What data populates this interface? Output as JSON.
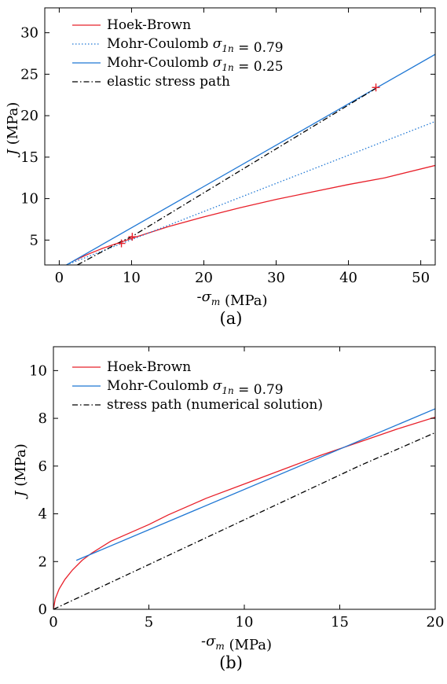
{
  "figure": {
    "panels": [
      {
        "caption": "(a)"
      },
      {
        "caption": "(b)"
      }
    ]
  },
  "colors": {
    "hoek_brown": "#e8202a",
    "mohr_coulomb": "#1f77d4",
    "path": "#000000",
    "axes": "#000000"
  },
  "chart_data": [
    {
      "type": "line",
      "xlabel": "-σm (MPa)",
      "ylabel": "J (MPa)",
      "xlim": [
        -2,
        52
      ],
      "ylim": [
        2,
        33
      ],
      "xticks": [
        0,
        10,
        20,
        30,
        40,
        50
      ],
      "yticks": [
        5,
        10,
        15,
        20,
        25,
        30
      ],
      "legend_position": "top-left",
      "series": [
        {
          "name": "Hoek-Brown",
          "style": "solid",
          "color": "#e8202a",
          "x": [
            2.0,
            4.0,
            6.0,
            8.5,
            10.0,
            12.5,
            15.0,
            20.0,
            25.0,
            30.0,
            35.0,
            40.0,
            45.0,
            52.0
          ],
          "y": [
            2.5,
            3.3,
            4.0,
            4.75,
            5.2,
            5.9,
            6.6,
            7.8,
            8.9,
            9.9,
            10.8,
            11.7,
            12.5,
            14.0
          ]
        },
        {
          "name": "Mohr-Coulomb σ1n = 0.79",
          "style": "dotted",
          "color": "#1f77d4",
          "x": [
            1.0,
            52.0
          ],
          "y": [
            2.0,
            19.3
          ]
        },
        {
          "name": "Mohr-Coulomb σ1n = 0.25",
          "style": "solid",
          "color": "#1f77d4",
          "x": [
            1.0,
            52.0
          ],
          "y": [
            2.0,
            27.4
          ]
        },
        {
          "name": "elastic stress path",
          "style": "dashdot",
          "color": "#000000",
          "x": [
            2.5,
            8.5,
            10.0,
            20.0,
            30.0,
            44.0
          ],
          "y": [
            2.0,
            4.8,
            5.4,
            10.7,
            16.0,
            23.4
          ]
        }
      ],
      "markers": [
        {
          "x": 8.6,
          "y": 4.6
        },
        {
          "x": 10.1,
          "y": 5.4
        },
        {
          "x": 43.8,
          "y": 23.4
        }
      ]
    },
    {
      "type": "line",
      "xlabel": "-σm (MPa)",
      "ylabel": "J (MPa)",
      "xlim": [
        0,
        20
      ],
      "ylim": [
        0,
        11
      ],
      "xticks": [
        0,
        5,
        10,
        15,
        20
      ],
      "yticks": [
        0,
        2,
        4,
        6,
        8,
        10
      ],
      "legend_position": "top-left",
      "series": [
        {
          "name": "Hoek-Brown",
          "style": "solid",
          "color": "#e8202a",
          "x": [
            0.0,
            0.1,
            0.3,
            0.6,
            1.0,
            1.5,
            2.0,
            3.0,
            4.0,
            5.0,
            6.0,
            8.0,
            10.0,
            12.0,
            14.0,
            16.0,
            18.0,
            20.0
          ],
          "y": [
            0.0,
            0.45,
            0.85,
            1.25,
            1.65,
            2.05,
            2.35,
            2.85,
            3.2,
            3.55,
            3.95,
            4.65,
            5.25,
            5.85,
            6.45,
            7.0,
            7.55,
            8.05
          ]
        },
        {
          "name": "Mohr-Coulomb σ1n = 0.79",
          "style": "solid",
          "color": "#1f77d4",
          "x": [
            1.2,
            20.0
          ],
          "y": [
            2.05,
            8.4
          ]
        },
        {
          "name": "stress path (numerical solution)",
          "style": "dashdot",
          "color": "#000000",
          "x": [
            0.0,
            2.0,
            4.0,
            6.0,
            8.0,
            10.0,
            12.0,
            14.0,
            16.0,
            18.0,
            20.0
          ],
          "y": [
            0.0,
            0.75,
            1.5,
            2.25,
            3.0,
            3.75,
            4.5,
            5.25,
            6.0,
            6.7,
            7.4
          ]
        }
      ]
    }
  ]
}
